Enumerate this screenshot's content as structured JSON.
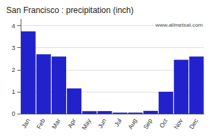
{
  "chart_data": {
    "type": "bar",
    "title": "San Francisco : precipitation (inch)",
    "categories": [
      "Jan",
      "Feb",
      "Mar",
      "Apr",
      "May",
      "Jun",
      "Jul",
      "Aug",
      "Sep",
      "Oct",
      "Nov",
      "Dec"
    ],
    "values": [
      3.75,
      2.7,
      2.6,
      1.15,
      0.12,
      0.12,
      0.05,
      0.05,
      0.13,
      1.0,
      2.45,
      2.6
    ],
    "color": "#2222cc",
    "ylim": [
      0,
      4.3
    ],
    "yticks": [
      0,
      1,
      2,
      3,
      4
    ],
    "grid": true,
    "annotations": [
      "www.allmetsat.com"
    ]
  }
}
